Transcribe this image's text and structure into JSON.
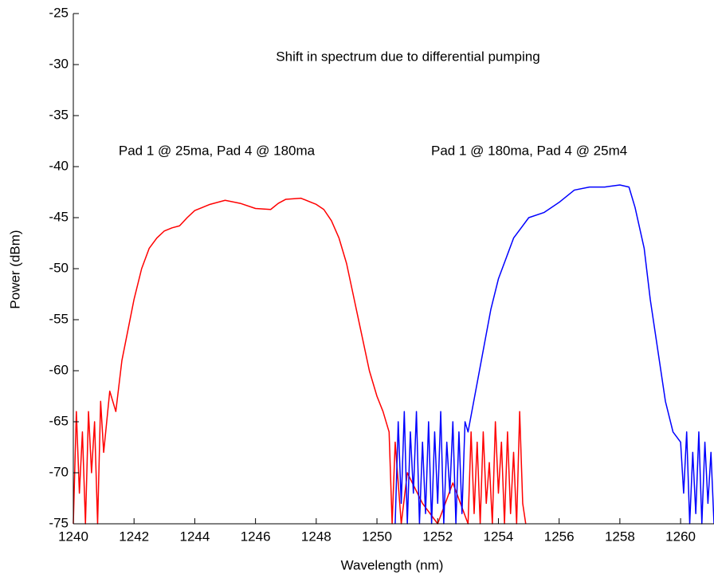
{
  "chart_data": {
    "type": "line",
    "annotations": [
      "Shift in spectrum due to differential pumping",
      "Pad 1 @ 25ma, Pad 4 @ 180ma",
      "Pad 1 @ 180ma, Pad 4 @ 25m4"
    ],
    "x_label": "Wavelength (nm)",
    "y_label": "Power (dBm)",
    "xlim": [
      1240,
      1261.1
    ],
    "ylim": [
      -75,
      -25
    ],
    "xticks": [
      1240,
      1242,
      1244,
      1246,
      1248,
      1250,
      1252,
      1254,
      1256,
      1258,
      1260
    ],
    "yticks": [
      -25,
      -30,
      -35,
      -40,
      -45,
      -50,
      -55,
      -60,
      -65,
      -70,
      -75
    ],
    "series": [
      {
        "color": "#ff0000",
        "x": [
          1240.0,
          1240.1,
          1240.2,
          1240.3,
          1240.4,
          1240.5,
          1240.6,
          1240.7,
          1240.8,
          1240.9,
          1241.0,
          1241.2,
          1241.4,
          1241.6,
          1241.8,
          1242.0,
          1242.25,
          1242.5,
          1242.75,
          1243.0,
          1243.25,
          1243.5,
          1243.75,
          1244.0,
          1244.5,
          1245.0,
          1245.5,
          1246.0,
          1246.5,
          1246.75,
          1247.0,
          1247.5,
          1248.0,
          1248.25,
          1248.5,
          1248.75,
          1249.0,
          1249.25,
          1249.5,
          1249.75,
          1250.0,
          1250.2,
          1250.4,
          1250.5,
          1250.6,
          1250.8,
          1251.0,
          1251.5,
          1252.0,
          1252.5,
          1253.0,
          1253.1,
          1253.2,
          1253.3,
          1253.4,
          1253.5,
          1253.6,
          1253.7,
          1253.8,
          1253.9,
          1254.0,
          1254.1,
          1254.2,
          1254.3,
          1254.4,
          1254.5,
          1254.6,
          1254.7,
          1254.8,
          1254.9
        ],
        "values": [
          -75,
          -64,
          -72,
          -66,
          -75,
          -64,
          -70,
          -65,
          -75,
          -63,
          -68,
          -62,
          -64,
          -59,
          -56,
          -53,
          -50,
          -48,
          -47,
          -46.3,
          -46,
          -45.8,
          -45,
          -44.3,
          -43.7,
          -43.3,
          -43.6,
          -44.1,
          -44.2,
          -43.6,
          -43.2,
          -43.1,
          -43.7,
          -44.2,
          -45.3,
          -47,
          -49.5,
          -53,
          -56.5,
          -60,
          -62.5,
          -64,
          -66,
          -75,
          -67,
          -75,
          -70,
          -73,
          -75,
          -71,
          -75,
          -66,
          -74,
          -67,
          -75,
          -66,
          -73,
          -69,
          -75,
          -65,
          -72,
          -67,
          -75,
          -66,
          -74,
          -68,
          -75,
          -64,
          -73,
          -75
        ]
      },
      {
        "color": "#0000ff",
        "x": [
          1250.6,
          1250.7,
          1250.8,
          1250.9,
          1251.0,
          1251.1,
          1251.2,
          1251.3,
          1251.4,
          1251.5,
          1251.6,
          1251.7,
          1251.8,
          1251.9,
          1252.0,
          1252.1,
          1252.2,
          1252.3,
          1252.4,
          1252.5,
          1252.6,
          1252.7,
          1252.8,
          1252.9,
          1253.0,
          1253.25,
          1253.5,
          1253.75,
          1254.0,
          1254.25,
          1254.5,
          1254.75,
          1255.0,
          1255.5,
          1256.0,
          1256.5,
          1257.0,
          1257.5,
          1258.0,
          1258.3,
          1258.5,
          1258.8,
          1259.0,
          1259.25,
          1259.5,
          1259.75,
          1260.0,
          1260.1,
          1260.2,
          1260.3,
          1260.4,
          1260.5,
          1260.6,
          1260.7,
          1260.8,
          1260.9,
          1261.0,
          1261.1
        ],
        "values": [
          -75,
          -65,
          -73,
          -64,
          -75,
          -66,
          -72,
          -64,
          -75,
          -67,
          -74,
          -65,
          -75,
          -66,
          -73,
          -64,
          -75,
          -67,
          -72,
          -65,
          -75,
          -66,
          -74,
          -65,
          -66,
          -62,
          -58,
          -54,
          -51,
          -49,
          -47,
          -46,
          -45,
          -44.5,
          -43.5,
          -42.3,
          -42,
          -42,
          -41.8,
          -42,
          -44,
          -48,
          -53,
          -58,
          -63,
          -66,
          -67,
          -72,
          -66,
          -75,
          -68,
          -74,
          -66,
          -75,
          -67,
          -73,
          -68,
          -75
        ]
      }
    ]
  }
}
